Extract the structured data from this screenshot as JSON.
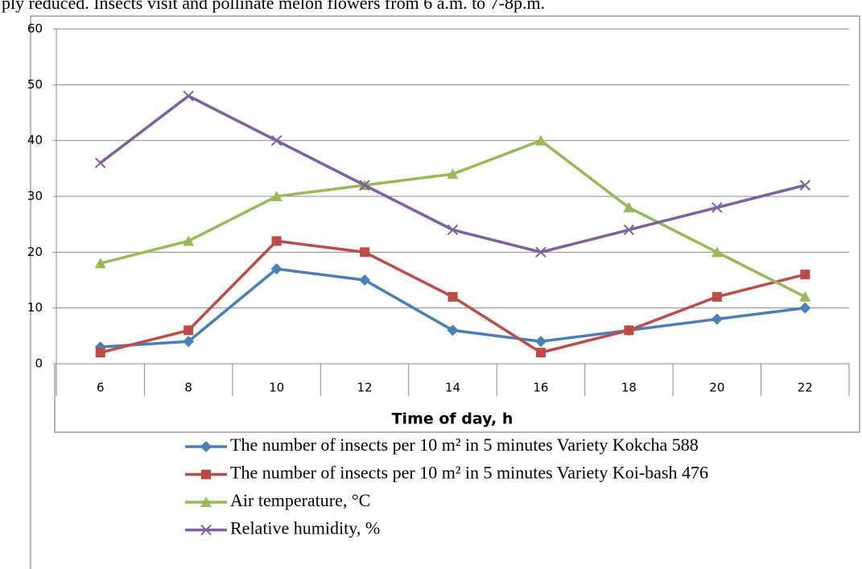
{
  "context_text": "ply reduced. Insects visit and pollinate melon flowers from 6 a.m. to 7-8p.m.",
  "chart_data": {
    "type": "line",
    "xlabel": "Time of day, h",
    "categories": [
      "6",
      "8",
      "10",
      "12",
      "14",
      "16",
      "18",
      "20",
      "22"
    ],
    "series": [
      {
        "name": "The number of insects per 10 m² in 5 minutes Variety Kokcha 588",
        "color": "#4a7ebb",
        "marker": "diamond",
        "values": [
          3,
          4,
          17,
          15,
          6,
          4,
          6,
          8,
          10
        ]
      },
      {
        "name": "The number of insects per 10 m² in 5 minutes Variety Koi-bash 476",
        "color": "#be4b48",
        "marker": "square",
        "values": [
          2,
          6,
          22,
          20,
          12,
          2,
          6,
          12,
          16
        ]
      },
      {
        "name": "Air temperature, °C",
        "color": "#98b954",
        "marker": "triangle",
        "values": [
          18,
          22,
          30,
          32,
          34,
          40,
          28,
          20,
          12
        ]
      },
      {
        "name": "Relative humidity, %",
        "color": "#7d60a0",
        "marker": "x",
        "values": [
          36,
          48,
          40,
          32,
          24,
          20,
          24,
          28,
          32
        ]
      }
    ],
    "ylim": [
      0,
      60
    ],
    "yticks": [
      0,
      10,
      20,
      30,
      40,
      50,
      60
    ],
    "grid": true
  }
}
